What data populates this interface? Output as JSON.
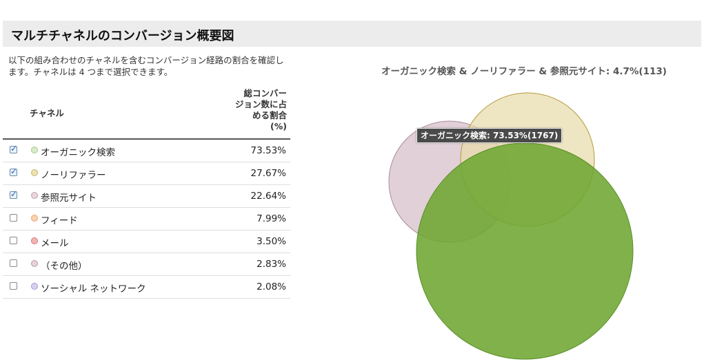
{
  "header": {
    "title": "マルチチャネルのコンバージョン概要図"
  },
  "description": "以下の組み合わせのチャネルを含むコンバージョン経路の割合を確認します。チャネルは 4 つまで選択できます。",
  "table": {
    "col_channel": "チャネル",
    "col_pct": "総コンバー\nジョン数に占\nめる割合\n(%)",
    "rows": [
      {
        "checked": true,
        "label": "オーガニック検索",
        "pct": "73.53%",
        "dot_fill": "#d9ecc8",
        "dot_stroke": "#a8c98c"
      },
      {
        "checked": true,
        "label": "ノーリファラー",
        "pct": "27.67%",
        "dot_fill": "#ece2b4",
        "dot_stroke": "#c7b56a"
      },
      {
        "checked": true,
        "label": "参照元サイト",
        "pct": "22.64%",
        "dot_fill": "#e7d6dc",
        "dot_stroke": "#bfa0ab"
      },
      {
        "checked": false,
        "label": "フィード",
        "pct": "7.99%",
        "dot_fill": "#fbd2b0",
        "dot_stroke": "#e9a46c"
      },
      {
        "checked": false,
        "label": "メール",
        "pct": "3.50%",
        "dot_fill": "#f4b4b4",
        "dot_stroke": "#d97474"
      },
      {
        "checked": false,
        "label": "（その他）",
        "pct": "2.83%",
        "dot_fill": "#e6d3da",
        "dot_stroke": "#b99aa6"
      },
      {
        "checked": false,
        "label": "ソーシャル ネットワーク",
        "pct": "2.08%",
        "dot_fill": "#d9d0f0",
        "dot_stroke": "#a697d6"
      }
    ]
  },
  "chart_data": {
    "type": "venn",
    "title": "オーガニック検索 & ノーリファラー & 参照元サイト: 4.7%(113)",
    "tooltip": "オーガニック検索: 73.53%(1767)",
    "sets": [
      {
        "name": "オーガニック検索",
        "pct": 73.53,
        "count": 1767,
        "color": "#6ea632"
      },
      {
        "name": "ノーリファラー",
        "pct": 27.67,
        "color": "#e8dcae"
      },
      {
        "name": "参照元サイト",
        "pct": 22.64,
        "color": "#dcc8d0"
      }
    ],
    "intersection_all": {
      "pct": 4.7,
      "count": 113
    }
  }
}
